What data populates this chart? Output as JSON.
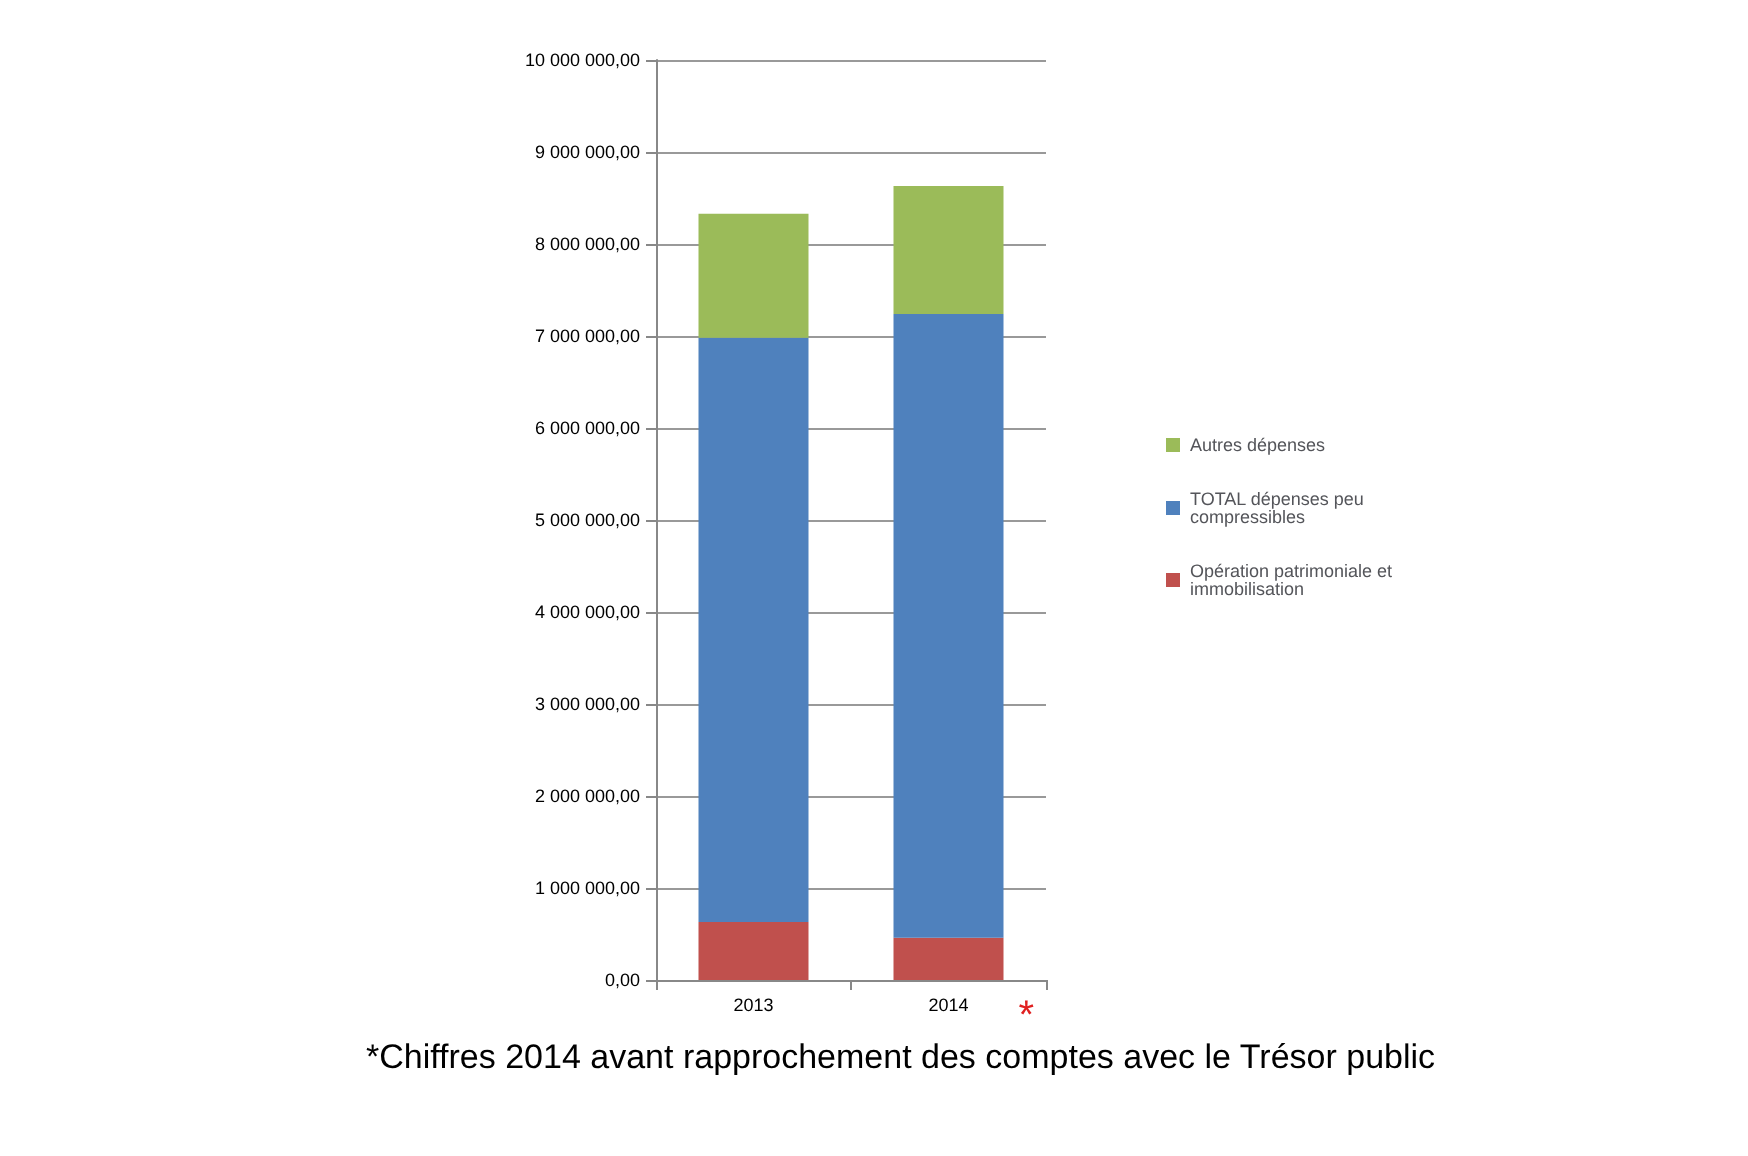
{
  "chart_data": {
    "type": "bar",
    "stacked": true,
    "categories": [
      "2013",
      "2014"
    ],
    "series": [
      {
        "name": "Opération patrimoniale et immobilisation",
        "color": "#c0504d",
        "values": [
          630000,
          460000
        ]
      },
      {
        "name": "TOTAL dépenses peu compressibles",
        "color": "#4f81bd",
        "values": [
          6350000,
          6780000
        ]
      },
      {
        "name": "Autres dépenses",
        "color": "#9bbb59",
        "values": [
          1350000,
          1390000
        ]
      }
    ],
    "ylim": [
      0,
      10000000
    ],
    "yticks": [
      {
        "value": 0,
        "label": "0,00"
      },
      {
        "value": 1000000,
        "label": "1 000 000,00"
      },
      {
        "value": 2000000,
        "label": "2 000 000,00"
      },
      {
        "value": 3000000,
        "label": "3 000 000,00"
      },
      {
        "value": 4000000,
        "label": "4 000 000,00"
      },
      {
        "value": 5000000,
        "label": "5 000 000,00"
      },
      {
        "value": 6000000,
        "label": "6 000 000,00"
      },
      {
        "value": 7000000,
        "label": "7 000 000,00"
      },
      {
        "value": 8000000,
        "label": "8 000 000,00"
      },
      {
        "value": 9000000,
        "label": "9 000 000,00"
      },
      {
        "value": 10000000,
        "label": "10 000 000,00"
      }
    ],
    "grid": "y",
    "legend": "right",
    "annotations": [
      {
        "text": "*",
        "x": "2014",
        "y": 0
      },
      "*Chiffres 2014 avant rapprochement des comptes avec le Trésor public"
    ]
  }
}
